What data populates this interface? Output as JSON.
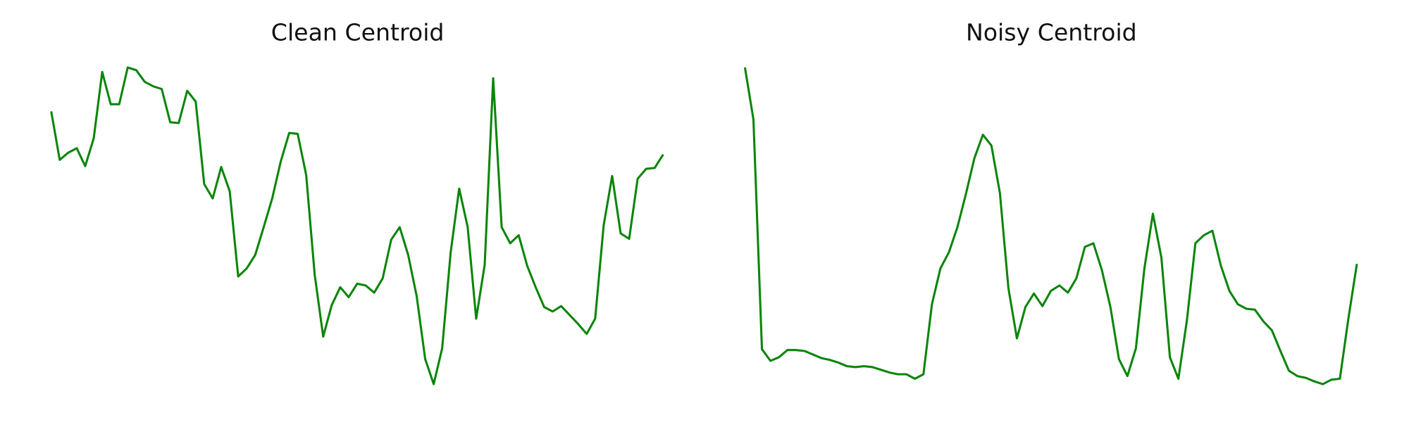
{
  "chart_data": [
    {
      "type": "line",
      "title": "Clean Centroid",
      "color": "#0a850a",
      "ylim": [
        0,
        450
      ],
      "values": [
        326,
        272,
        280,
        285,
        265,
        296,
        370,
        334,
        334,
        375,
        372,
        359,
        354,
        351,
        314,
        313,
        349,
        337,
        245,
        229,
        264,
        237,
        142,
        151,
        166,
        197,
        229,
        270,
        302,
        301,
        255,
        144,
        75,
        110,
        130,
        119,
        134,
        132,
        124,
        140,
        183,
        197,
        166,
        120,
        50,
        22,
        62,
        169,
        240,
        197,
        95,
        155,
        363,
        197,
        179,
        188,
        154,
        130,
        108,
        103,
        109,
        99,
        89,
        78,
        95,
        199,
        254,
        190,
        184,
        251,
        262,
        263,
        278
      ]
    },
    {
      "type": "line",
      "title": "Noisy Centroid",
      "color": "#0a850a",
      "ylim": [
        0,
        450
      ],
      "values": [
        375,
        317,
        61,
        48,
        52,
        60,
        60,
        59,
        55,
        51,
        49,
        46,
        42,
        41,
        42,
        41,
        38,
        35,
        33,
        33,
        28,
        33,
        111,
        151,
        169,
        197,
        234,
        274,
        300,
        288,
        235,
        129,
        73,
        108,
        123,
        109,
        126,
        132,
        124,
        140,
        175,
        179,
        149,
        108,
        50,
        31,
        62,
        151,
        212,
        163,
        52,
        28,
        93,
        179,
        188,
        193,
        154,
        126,
        111,
        106,
        105,
        92,
        82,
        59,
        37,
        31,
        29,
        25,
        22,
        27,
        28,
        95,
        156
      ]
    }
  ]
}
